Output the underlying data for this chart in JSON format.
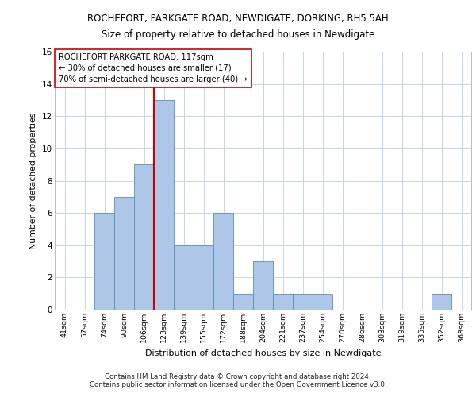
{
  "title1": "ROCHEFORT, PARKGATE ROAD, NEWDIGATE, DORKING, RH5 5AH",
  "title2": "Size of property relative to detached houses in Newdigate",
  "xlabel": "Distribution of detached houses by size in Newdigate",
  "ylabel": "Number of detached properties",
  "categories": [
    "41sqm",
    "57sqm",
    "74sqm",
    "90sqm",
    "106sqm",
    "123sqm",
    "139sqm",
    "155sqm",
    "172sqm",
    "188sqm",
    "204sqm",
    "221sqm",
    "237sqm",
    "254sqm",
    "270sqm",
    "286sqm",
    "303sqm",
    "319sqm",
    "335sqm",
    "352sqm",
    "368sqm"
  ],
  "values": [
    0,
    0,
    6,
    7,
    9,
    13,
    4,
    4,
    6,
    1,
    3,
    1,
    1,
    1,
    0,
    0,
    0,
    0,
    0,
    1,
    0
  ],
  "bar_color": "#aec6e8",
  "bar_edge_color": "#5b8db8",
  "ref_line_color": "#cc0000",
  "ref_line_label": "ROCHEFORT PARKGATE ROAD: 117sqm",
  "annotation_line1": "← 30% of detached houses are smaller (17)",
  "annotation_line2": "70% of semi-detached houses are larger (40) →",
  "ylim": [
    0,
    16
  ],
  "yticks": [
    0,
    2,
    4,
    6,
    8,
    10,
    12,
    14,
    16
  ],
  "footer1": "Contains HM Land Registry data © Crown copyright and database right 2024.",
  "footer2": "Contains public sector information licensed under the Open Government Licence v3.0.",
  "grid_color": "#c8d4e8",
  "ref_bar_index": 4
}
